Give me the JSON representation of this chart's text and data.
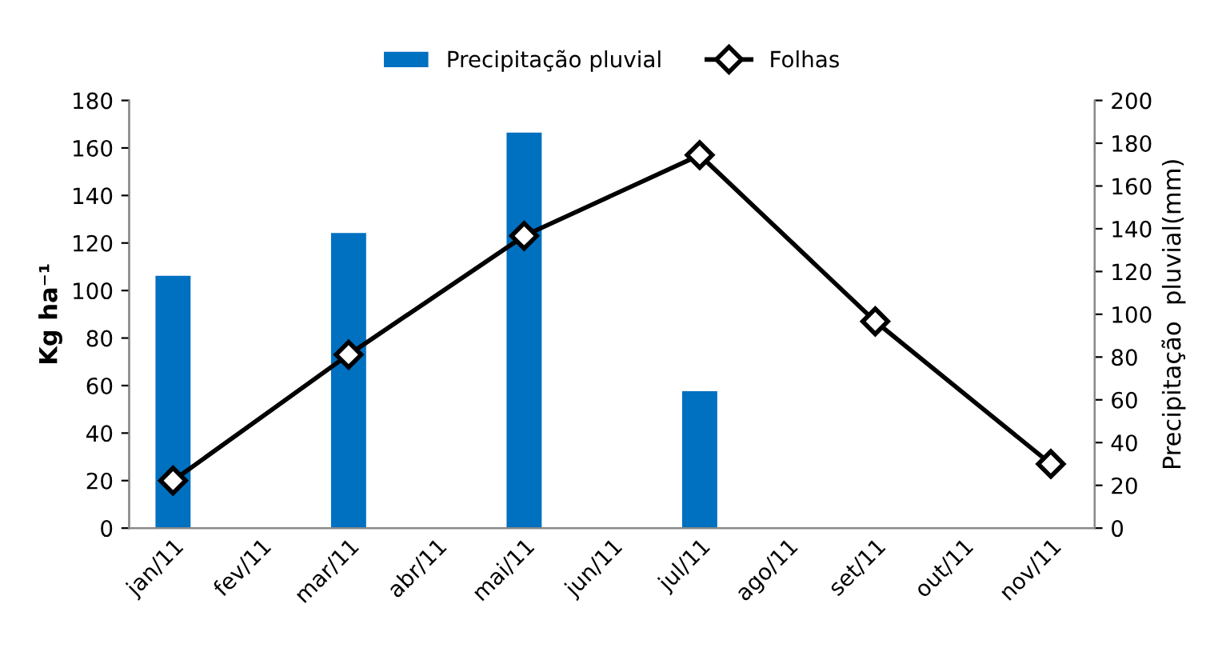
{
  "chart_data": {
    "type": "bar",
    "categories": [
      "jan/11",
      "fev/11",
      "mar/11",
      "abr/11",
      "mai/11",
      "jun/11",
      "jul/11",
      "ago/11",
      "set/11",
      "out/11",
      "nov/11"
    ],
    "ylabel": "Kg ha⁻¹",
    "y2label": "Precipitação  pluvial(mm)",
    "ylim": [
      0,
      180
    ],
    "yticks": [
      0,
      20,
      40,
      60,
      80,
      100,
      120,
      140,
      160,
      180
    ],
    "y2lim": [
      0,
      200
    ],
    "y2ticks": [
      0,
      20,
      40,
      60,
      80,
      100,
      120,
      140,
      160,
      180,
      200
    ],
    "grid": false,
    "legend": "top",
    "series": [
      {
        "name": "Precipitação pluvial",
        "axis": "y2",
        "color": "#0070c0",
        "values": [
          118,
          null,
          138,
          null,
          185,
          null,
          64,
          null,
          null,
          null,
          null
        ]
      },
      {
        "name": "Folhas",
        "type": "line",
        "color": "#000000",
        "marker": "diamond",
        "line_style": "solid",
        "values": [
          20,
          null,
          73,
          null,
          123,
          null,
          157,
          null,
          87,
          null,
          27
        ]
      }
    ]
  }
}
